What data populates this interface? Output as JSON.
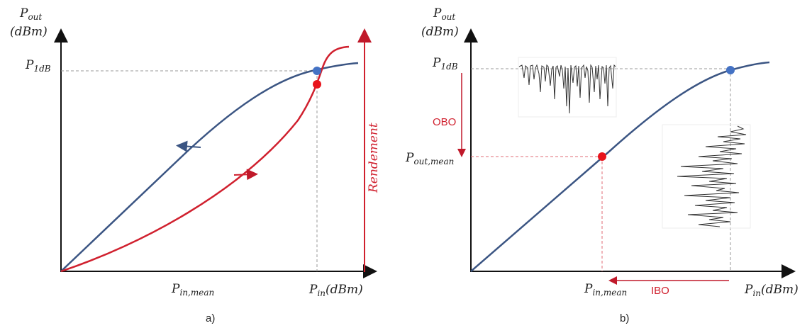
{
  "panel_a": {
    "caption": "a)",
    "y_axis": {
      "var": "P",
      "sub": "out",
      "unit": "(dBm)"
    },
    "y_tick": {
      "var": "P",
      "sub": "1dB"
    },
    "x_tick": {
      "var": "P",
      "sub": "in,mean"
    },
    "x_axis": {
      "var": "P",
      "sub": "in",
      "unit": "(dBm)"
    },
    "right_axis_label": "Rendement",
    "colors": {
      "pout_curve": "#3b5583",
      "efficiency_curve": "#d0202e",
      "grid": "#999999"
    }
  },
  "panel_b": {
    "caption": "b)",
    "y_axis": {
      "var": "P",
      "sub": "out",
      "unit": "(dBm)"
    },
    "y_tick_top": {
      "var": "P",
      "sub": "1dB"
    },
    "y_tick_mid": {
      "var": "P",
      "sub": "out,mean"
    },
    "x_tick": {
      "var": "P",
      "sub": "in,mean"
    },
    "x_axis": {
      "var": "P",
      "sub": "in",
      "unit": "(dBm)"
    },
    "obo_label": "OBO",
    "ibo_label": "IBO",
    "colors": {
      "pout_curve": "#3b5583",
      "backoff": "#d0202e",
      "p1db_marker": "#4472c4",
      "mean_marker": "#e8141c"
    }
  }
}
